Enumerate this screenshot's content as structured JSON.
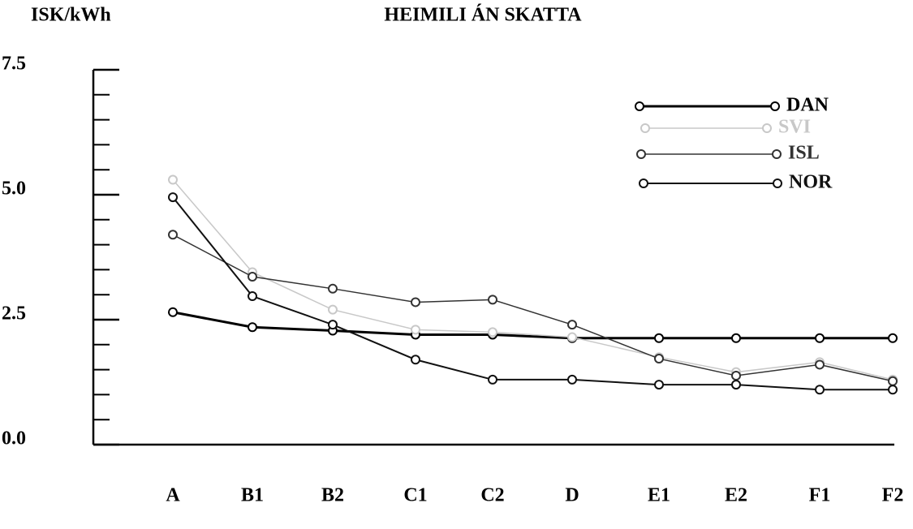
{
  "chart_data": {
    "type": "line",
    "title": "HEIMILI ÁN SKATTA",
    "y_label": "ISK/kWh",
    "categories": [
      "A",
      "B1",
      "B2",
      "C1",
      "C2",
      "D",
      "E1",
      "E2",
      "F1",
      "F2"
    ],
    "series": [
      {
        "name": "DAN",
        "color": "#000000",
        "values": [
          2.65,
          2.35,
          2.28,
          2.2,
          2.2,
          2.13,
          2.13,
          2.13,
          2.13,
          2.13
        ]
      },
      {
        "name": "SVI",
        "color": "#c8c8c8",
        "values": [
          5.3,
          3.45,
          2.7,
          2.3,
          2.25,
          2.15,
          1.75,
          1.45,
          1.65,
          1.3
        ]
      },
      {
        "name": "ISL",
        "color": "#333333",
        "values": [
          4.2,
          3.36,
          3.12,
          2.85,
          2.9,
          2.4,
          1.72,
          1.38,
          1.6,
          1.27
        ]
      },
      {
        "name": "NOR",
        "color": "#111111",
        "values": [
          4.95,
          2.97,
          2.4,
          1.7,
          1.3,
          1.3,
          1.2,
          1.2,
          1.1,
          1.1
        ]
      }
    ],
    "ylim": [
      0,
      7.5
    ],
    "yticks": [
      {
        "value": 0,
        "label": "0.0"
      },
      2.5,
      {
        "value": 5,
        "label": "5.0"
      },
      7.5
    ],
    "yminorticks": [
      0.5,
      1,
      1.5,
      2,
      3,
      3.5,
      4,
      4.5,
      5.5,
      6,
      6.5,
      7
    ],
    "legend": "upper right"
  }
}
